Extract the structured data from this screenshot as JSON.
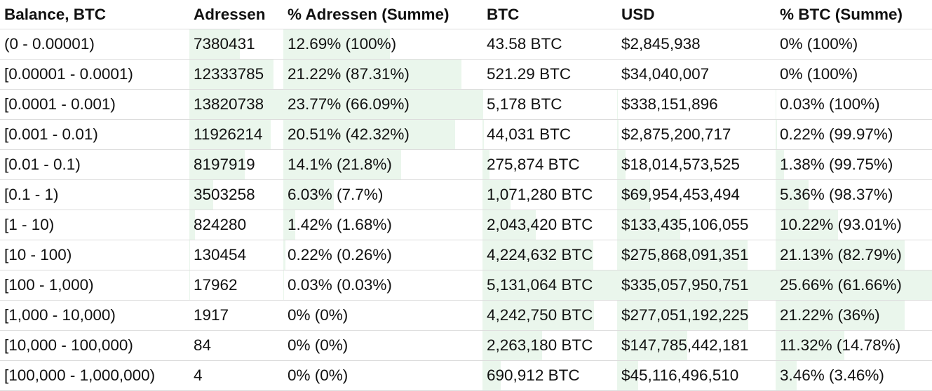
{
  "headers": [
    "Balance, BTC",
    "Adressen",
    "% Adressen (Summe)",
    "BTC",
    "USD",
    "% BTC (Summe)"
  ],
  "bar_color": "#eaf6ec",
  "rows": [
    {
      "range": "(0 - 0.00001)",
      "addresses": "7380431",
      "addr_pct": "12.69% (100%)",
      "btc": "43.58 BTC",
      "usd": "$2,845,938",
      "btc_pct": "0% (100%)",
      "addr_share": 12.69,
      "btc_share": 0
    },
    {
      "range": "[0.00001 - 0.0001)",
      "addresses": "12333785",
      "addr_pct": "21.22% (87.31%)",
      "btc": "521.29 BTC",
      "usd": "$34,040,007",
      "btc_pct": "0% (100%)",
      "addr_share": 21.22,
      "btc_share": 0
    },
    {
      "range": "[0.0001 - 0.001)",
      "addresses": "13820738",
      "addr_pct": "23.77% (66.09%)",
      "btc": "5,178 BTC",
      "usd": "$338,151,896",
      "btc_pct": "0.03% (100%)",
      "addr_share": 23.77,
      "btc_share": 0.03
    },
    {
      "range": "[0.001 - 0.01)",
      "addresses": "11926214",
      "addr_pct": "20.51% (42.32%)",
      "btc": "44,031 BTC",
      "usd": "$2,875,200,717",
      "btc_pct": "0.22% (99.97%)",
      "addr_share": 20.51,
      "btc_share": 0.22
    },
    {
      "range": "[0.01 - 0.1)",
      "addresses": "8197919",
      "addr_pct": "14.1% (21.8%)",
      "btc": "275,874 BTC",
      "usd": "$18,014,573,525",
      "btc_pct": "1.38% (99.75%)",
      "addr_share": 14.1,
      "btc_share": 1.38
    },
    {
      "range": "[0.1 - 1)",
      "addresses": "3503258",
      "addr_pct": "6.03% (7.7%)",
      "btc": "1,071,280 BTC",
      "usd": "$69,954,453,494",
      "btc_pct": "5.36% (98.37%)",
      "addr_share": 6.03,
      "btc_share": 5.36
    },
    {
      "range": "[1 - 10)",
      "addresses": "824280",
      "addr_pct": "1.42% (1.68%)",
      "btc": "2,043,420 BTC",
      "usd": "$133,435,106,055",
      "btc_pct": "10.22% (93.01%)",
      "addr_share": 1.42,
      "btc_share": 10.22
    },
    {
      "range": "[10 - 100)",
      "addresses": "130454",
      "addr_pct": "0.22% (0.26%)",
      "btc": "4,224,632 BTC",
      "usd": "$275,868,091,351",
      "btc_pct": "21.13% (82.79%)",
      "addr_share": 0.22,
      "btc_share": 21.13
    },
    {
      "range": "[100 - 1,000)",
      "addresses": "17962",
      "addr_pct": "0.03% (0.03%)",
      "btc": "5,131,064 BTC",
      "usd": "$335,057,950,751",
      "btc_pct": "25.66% (61.66%)",
      "addr_share": 0.03,
      "btc_share": 25.66
    },
    {
      "range": "[1,000 - 10,000)",
      "addresses": "1917",
      "addr_pct": "0% (0%)",
      "btc": "4,242,750 BTC",
      "usd": "$277,051,192,225",
      "btc_pct": "21.22% (36%)",
      "addr_share": 0,
      "btc_share": 21.22
    },
    {
      "range": "[10,000 - 100,000)",
      "addresses": "84",
      "addr_pct": "0% (0%)",
      "btc": "2,263,180 BTC",
      "usd": "$147,785,442,181",
      "btc_pct": "11.32% (14.78%)",
      "addr_share": 0,
      "btc_share": 11.32
    },
    {
      "range": "[100,000 - 1,000,000)",
      "addresses": "4",
      "addr_pct": "0% (0%)",
      "btc": "690,912 BTC",
      "usd": "$45,116,496,510",
      "btc_pct": "3.46% (3.46%)",
      "addr_share": 0,
      "btc_share": 3.46
    }
  ]
}
